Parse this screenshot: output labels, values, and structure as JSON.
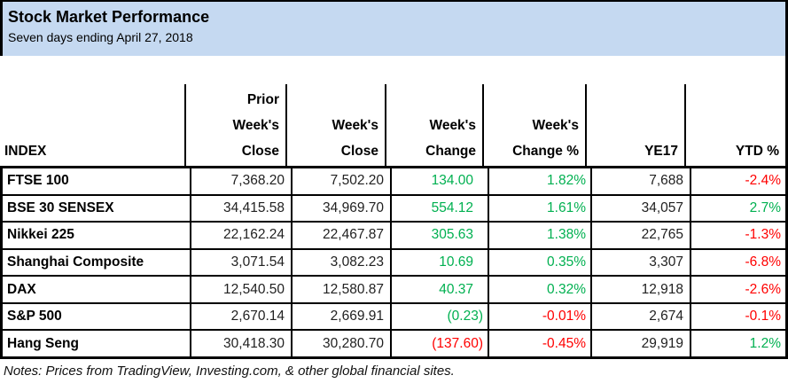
{
  "title": "Stock Market Performance",
  "subtitle": "Seven days ending April 27, 2018",
  "notes": "Notes: Prices from TradingView, Investing.com, & other global financial sites.",
  "colors": {
    "title_band_bg": "#C5D9F1",
    "positive": "#00B050",
    "negative": "#FF0000",
    "neutral_number": "#212121",
    "border": "#000000"
  },
  "table": {
    "columns": {
      "index": "INDEX",
      "prior_close": "Prior\nWeek's\nClose",
      "close": "Week's\nClose",
      "change": "Week's\nChange",
      "change_pct": "Week's\nChange %",
      "ye17": "YE17",
      "ytd_pct": "YTD %"
    },
    "rows": [
      {
        "name": "FTSE 100",
        "prior_close": "7,368.20",
        "close": "7,502.20",
        "change": "134.00",
        "change_tone": "positive",
        "change_pct": "1.82%",
        "change_pct_tone": "positive",
        "ye17": "7,688",
        "ye17_tone": "neutral",
        "ytd_pct": "-2.4%",
        "ytd_tone": "negative"
      },
      {
        "name": "BSE 30 SENSEX",
        "prior_close": "34,415.58",
        "close": "34,969.70",
        "change": "554.12",
        "change_tone": "positive",
        "change_pct": "1.61%",
        "change_pct_tone": "positive",
        "ye17": "34,057",
        "ye17_tone": "neutral",
        "ytd_pct": "2.7%",
        "ytd_tone": "positive"
      },
      {
        "name": "Nikkei 225",
        "prior_close": "22,162.24",
        "close": "22,467.87",
        "change": "305.63",
        "change_tone": "positive",
        "change_pct": "1.38%",
        "change_pct_tone": "positive",
        "ye17": "22,765",
        "ye17_tone": "neutral",
        "ytd_pct": "-1.3%",
        "ytd_tone": "negative"
      },
      {
        "name": "Shanghai Composite",
        "prior_close": "3,071.54",
        "close": "3,082.23",
        "change": "10.69",
        "change_tone": "positive",
        "change_pct": "0.35%",
        "change_pct_tone": "positive",
        "ye17": "3,307",
        "ye17_tone": "neutral",
        "ytd_pct": "-6.8%",
        "ytd_tone": "negative"
      },
      {
        "name": "DAX",
        "prior_close": "12,540.50",
        "close": "12,580.87",
        "change": "40.37",
        "change_tone": "positive",
        "change_pct": "0.32%",
        "change_pct_tone": "positive",
        "ye17": "12,918",
        "ye17_tone": "neutral",
        "ytd_pct": "-2.6%",
        "ytd_tone": "negative"
      },
      {
        "name": "S&P 500",
        "prior_close": "2,670.14",
        "close": "2,669.91",
        "change": "(0.23)",
        "change_tone": "positive",
        "change_pct": "-0.01%",
        "change_pct_tone": "negative",
        "ye17": "2,674",
        "ye17_tone": "neutral",
        "ytd_pct": "-0.1%",
        "ytd_tone": "negative"
      },
      {
        "name": "Hang Seng",
        "prior_close": "30,418.30",
        "close": "30,280.70",
        "change": "(137.60)",
        "change_tone": "negative",
        "change_pct": "-0.45%",
        "change_pct_tone": "negative",
        "ye17": "29,919",
        "ye17_tone": "neutral",
        "ytd_pct": "1.2%",
        "ytd_tone": "positive"
      }
    ]
  },
  "chart_data": {
    "type": "table",
    "title": "Stock Market Performance",
    "subtitle": "Seven days ending April 27, 2018",
    "columns": [
      "INDEX",
      "Prior Week's Close",
      "Week's Close",
      "Week's Change",
      "Week's Change %",
      "YE17",
      "YTD %"
    ],
    "rows": [
      [
        "FTSE 100",
        "7,368.20",
        "7,502.20",
        "134.00",
        "1.82%",
        "7,688",
        "-2.4%"
      ],
      [
        "BSE 30 SENSEX",
        "34,415.58",
        "34,969.70",
        "554.12",
        "1.61%",
        "34,057",
        "2.7%"
      ],
      [
        "Nikkei 225",
        "22,162.24",
        "22,467.87",
        "305.63",
        "1.38%",
        "22,765",
        "-1.3%"
      ],
      [
        "Shanghai Composite",
        "3,071.54",
        "3,082.23",
        "10.69",
        "0.35%",
        "3,307",
        "-6.8%"
      ],
      [
        "DAX",
        "12,540.50",
        "12,580.87",
        "40.37",
        "0.32%",
        "12,918",
        "-2.6%"
      ],
      [
        "S&P 500",
        "2,670.14",
        "2,669.91",
        "(0.23)",
        "-0.01%",
        "2,674",
        "-0.1%"
      ],
      [
        "Hang Seng",
        "30,418.30",
        "30,280.70",
        "(137.60)",
        "-0.45%",
        "29,919",
        "1.2%"
      ]
    ],
    "notes": "Notes: Prices from TradingView, Investing.com, & other global financial sites."
  }
}
